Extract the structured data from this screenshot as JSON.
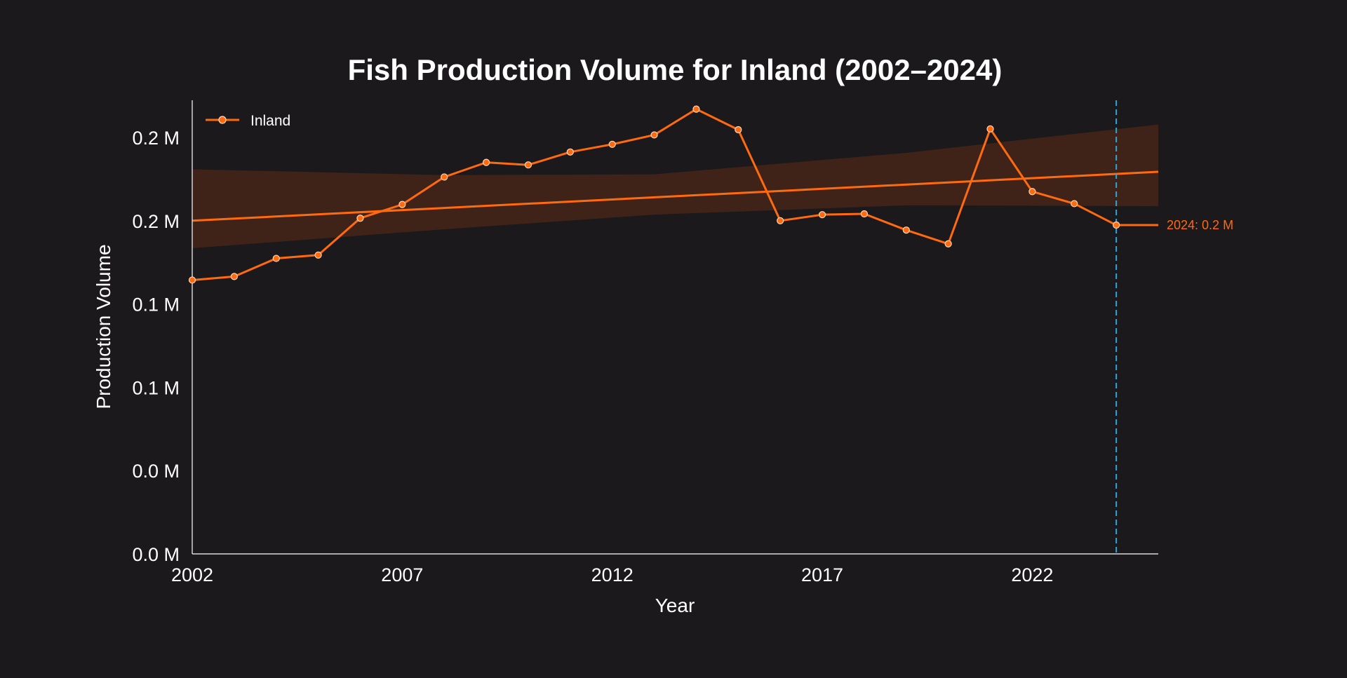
{
  "chart_data": {
    "type": "line",
    "title": "Fish Production Volume for Inland (2002–2024)",
    "xlabel": "Year",
    "ylabel": "Production Volume",
    "xlim": [
      2002,
      2025
    ],
    "ylim": [
      0,
      216000
    ],
    "x_ticks": [
      2002,
      2007,
      2012,
      2017,
      2022
    ],
    "x_tick_labels": [
      "2002",
      "2007",
      "2012",
      "2017",
      "2022"
    ],
    "y_ticks": [
      0,
      40000,
      80000,
      120000,
      160000,
      200000
    ],
    "y_tick_labels": [
      "0.0 M",
      "0.0 M",
      "0.1 M",
      "0.1 M",
      "0.2 M",
      "0.2 M"
    ],
    "grid": false,
    "legend": {
      "placement": "top-left",
      "entries": [
        "Inland"
      ]
    },
    "series": [
      {
        "name": "Inland",
        "color": "#ff6a0f",
        "x": [
          2002,
          2003,
          2004,
          2005,
          2006,
          2007,
          2008,
          2009,
          2010,
          2011,
          2012,
          2013,
          2014,
          2015,
          2016,
          2017,
          2018,
          2019,
          2020,
          2021,
          2022,
          2023,
          2024
        ],
        "values": [
          131500,
          133200,
          141900,
          143500,
          161200,
          167800,
          181000,
          188000,
          186800,
          193000,
          196700,
          201200,
          213600,
          203700,
          160000,
          162900,
          163300,
          155500,
          148900,
          204100,
          174000,
          168200,
          157900
        ]
      }
    ],
    "trend": {
      "color": "#ff6a0f",
      "x": [
        2002,
        2025
      ],
      "values": [
        160000,
        183500
      ],
      "band_color": "#3f2319",
      "band_x": [
        2002,
        2008,
        2013,
        2019,
        2025
      ],
      "band_upper": [
        184700,
        181900,
        182300,
        192600,
        206200
      ],
      "band_lower": [
        146800,
        155900,
        162900,
        167400,
        167000
      ]
    },
    "marker_line": {
      "x": 2024,
      "color": "#2aa7dc"
    },
    "end_label": "2024: 0.2 M"
  }
}
